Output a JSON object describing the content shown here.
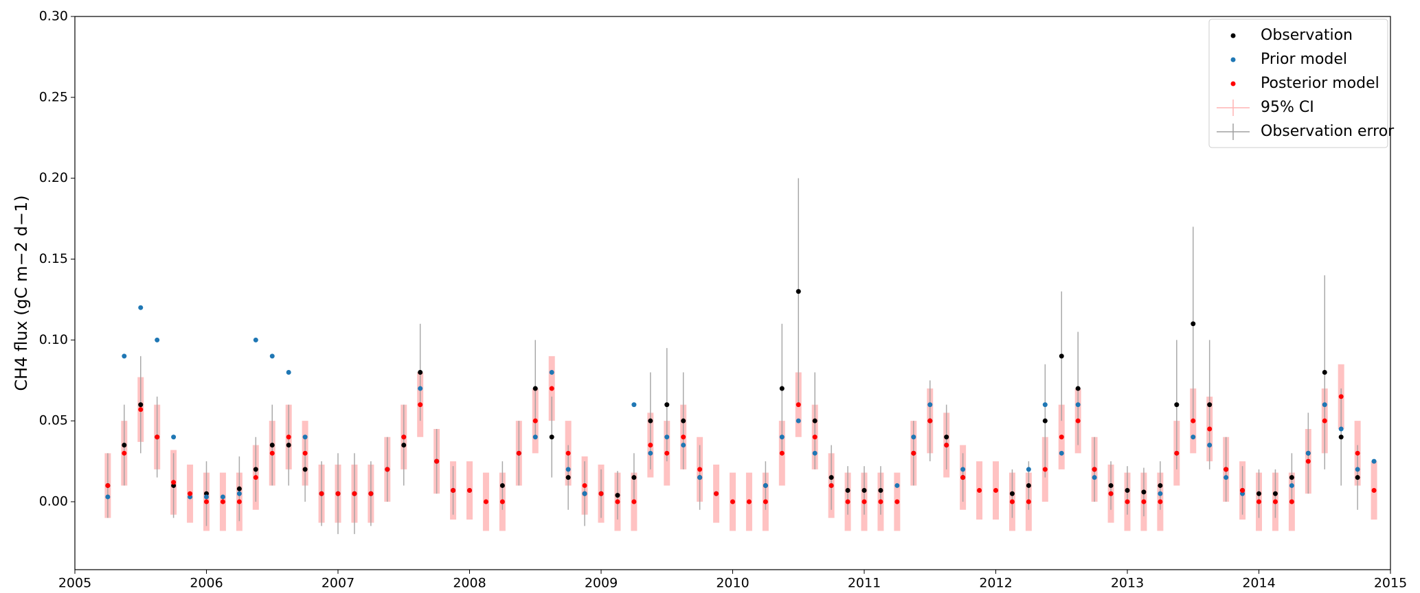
{
  "chart_data": {
    "type": "scatter",
    "y_label": "CH4 flux (gC m−2 d−1)",
    "xlim": [
      2005,
      2015
    ],
    "xticks": [
      2005,
      2006,
      2007,
      2008,
      2009,
      2010,
      2011,
      2012,
      2013,
      2014,
      2015
    ],
    "ylim": [
      -0.042,
      0.3
    ],
    "yticks": [
      {
        "value": 0,
        "label": "0.00"
      },
      {
        "value": 0.05,
        "label": "0.05"
      },
      {
        "value": 0.1,
        "label": "0.10"
      },
      {
        "value": 0.15,
        "label": "0.15"
      },
      {
        "value": 0.2,
        "label": "0.20"
      },
      {
        "value": 0.25,
        "label": "0.25"
      },
      {
        "value": 0.3,
        "label": "0.30"
      }
    ],
    "legend": "upper right",
    "x": [
      2005.25,
      2005.375,
      2005.5,
      2005.625,
      2005.75,
      2005.875,
      2006.0,
      2006.125,
      2006.25,
      2006.375,
      2006.5,
      2006.625,
      2006.75,
      2006.875,
      2007.0,
      2007.125,
      2007.25,
      2007.375,
      2007.5,
      2007.625,
      2007.75,
      2007.875,
      2008.0,
      2008.125,
      2008.25,
      2008.375,
      2008.5,
      2008.625,
      2008.75,
      2008.875,
      2009.0,
      2009.125,
      2009.25,
      2009.375,
      2009.5,
      2009.625,
      2009.75,
      2009.875,
      2010.0,
      2010.125,
      2010.25,
      2010.375,
      2010.5,
      2010.625,
      2010.75,
      2010.875,
      2011.0,
      2011.125,
      2011.25,
      2011.375,
      2011.5,
      2011.625,
      2011.75,
      2011.875,
      2012.0,
      2012.125,
      2012.25,
      2012.375,
      2012.5,
      2012.625,
      2012.75,
      2012.875,
      2013.0,
      2013.125,
      2013.25,
      2013.375,
      2013.5,
      2013.625,
      2013.75,
      2013.875,
      2014.0,
      2014.125,
      2014.25,
      2014.375,
      2014.5,
      2014.625,
      2014.75,
      2014.875
    ],
    "series": [
      {
        "name": "Observation",
        "color": "#000000",
        "error_name": "Observation error",
        "error_color": "#a0a0a0",
        "values": [
          0.01,
          0.035,
          0.06,
          0.04,
          0.01,
          null,
          0.005,
          null,
          0.008,
          0.02,
          0.035,
          0.035,
          0.02,
          0.005,
          0.005,
          0.005,
          0.005,
          0.02,
          0.035,
          0.08,
          0.025,
          0.007,
          null,
          null,
          0.01,
          0.03,
          0.07,
          0.04,
          0.015,
          0.005,
          0.005,
          0.004,
          0.015,
          0.05,
          0.06,
          0.05,
          0.015,
          null,
          null,
          null,
          0.01,
          0.07,
          0.13,
          0.05,
          0.015,
          0.007,
          0.007,
          0.007,
          null,
          0.03,
          0.05,
          0.04,
          0.015,
          null,
          null,
          0.005,
          0.01,
          0.05,
          0.09,
          0.07,
          0.02,
          0.01,
          0.007,
          0.006,
          0.01,
          0.06,
          0.11,
          0.06,
          0.02,
          0.007,
          0.005,
          0.005,
          0.015,
          0.03,
          0.08,
          0.04,
          0.015,
          null
        ],
        "errors": [
          0.02,
          0.025,
          0.03,
          0.025,
          0.02,
          null,
          0.02,
          null,
          0.02,
          0.02,
          0.025,
          0.025,
          0.02,
          0.02,
          0.025,
          0.025,
          0.02,
          0.02,
          0.025,
          0.03,
          0.02,
          0.015,
          null,
          null,
          0.015,
          0.02,
          0.03,
          0.025,
          0.02,
          0.02,
          0.015,
          0.015,
          0.015,
          0.03,
          0.035,
          0.03,
          0.02,
          null,
          null,
          null,
          0.015,
          0.04,
          0.07,
          0.03,
          0.02,
          0.015,
          0.015,
          0.015,
          null,
          0.02,
          0.025,
          0.02,
          0.015,
          null,
          null,
          0.015,
          0.015,
          0.035,
          0.04,
          0.035,
          0.02,
          0.015,
          0.015,
          0.015,
          0.015,
          0.04,
          0.06,
          0.04,
          0.02,
          0.015,
          0.015,
          0.015,
          0.015,
          0.025,
          0.06,
          0.03,
          0.02,
          null
        ]
      },
      {
        "name": "Prior model",
        "color": "#1f77b4",
        "values": [
          0.003,
          0.09,
          0.12,
          0.1,
          0.04,
          0.003,
          0.003,
          0.003,
          0.005,
          0.1,
          0.09,
          0.08,
          0.04,
          0.005,
          null,
          null,
          0.005,
          0.02,
          0.04,
          0.07,
          0.025,
          0.007,
          0.007,
          null,
          null,
          0.03,
          0.04,
          0.08,
          0.02,
          0.005,
          0.005,
          null,
          0.06,
          0.03,
          0.04,
          0.035,
          0.015,
          0.005,
          null,
          null,
          0.01,
          0.04,
          0.05,
          0.03,
          0.01,
          null,
          null,
          null,
          0.01,
          0.04,
          0.06,
          0.035,
          0.02,
          null,
          null,
          null,
          0.02,
          0.06,
          0.03,
          0.06,
          0.015,
          0.005,
          null,
          null,
          0.005,
          0.03,
          0.04,
          0.035,
          0.015,
          0.005,
          null,
          null,
          0.01,
          0.03,
          0.06,
          0.045,
          0.02,
          0.025
        ]
      },
      {
        "name": "Posterior model",
        "color": "#ff0000",
        "error_name": "95% CI",
        "error_color": "#ffb3b3",
        "values": [
          0.01,
          0.03,
          0.057,
          0.04,
          0.012,
          0.005,
          0.0,
          0.0,
          0.0,
          0.015,
          0.03,
          0.04,
          0.03,
          0.005,
          0.005,
          0.005,
          0.005,
          0.02,
          0.04,
          0.06,
          0.025,
          0.007,
          0.007,
          0.0,
          0.0,
          0.03,
          0.05,
          0.07,
          0.03,
          0.01,
          0.005,
          0.0,
          0.0,
          0.035,
          0.03,
          0.04,
          0.02,
          0.005,
          0.0,
          0.0,
          0.0,
          0.03,
          0.06,
          0.04,
          0.01,
          0.0,
          0.0,
          0.0,
          0.0,
          0.03,
          0.05,
          0.035,
          0.015,
          0.007,
          0.007,
          0.0,
          0.0,
          0.02,
          0.04,
          0.05,
          0.02,
          0.005,
          0.0,
          0.0,
          0.0,
          0.03,
          0.05,
          0.045,
          0.02,
          0.007,
          0.0,
          0.0,
          0.0,
          0.025,
          0.05,
          0.065,
          0.03,
          0.007
        ],
        "errors": [
          0.02,
          0.02,
          0.02,
          0.02,
          0.02,
          0.018,
          0.018,
          0.018,
          0.018,
          0.02,
          0.02,
          0.02,
          0.02,
          0.018,
          0.018,
          0.018,
          0.018,
          0.02,
          0.02,
          0.02,
          0.02,
          0.018,
          0.018,
          0.018,
          0.018,
          0.02,
          0.02,
          0.02,
          0.02,
          0.018,
          0.018,
          0.018,
          0.018,
          0.02,
          0.02,
          0.02,
          0.02,
          0.018,
          0.018,
          0.018,
          0.018,
          0.02,
          0.02,
          0.02,
          0.02,
          0.018,
          0.018,
          0.018,
          0.018,
          0.02,
          0.02,
          0.02,
          0.02,
          0.018,
          0.018,
          0.018,
          0.018,
          0.02,
          0.02,
          0.02,
          0.02,
          0.018,
          0.018,
          0.018,
          0.018,
          0.02,
          0.02,
          0.02,
          0.02,
          0.018,
          0.018,
          0.018,
          0.018,
          0.02,
          0.02,
          0.02,
          0.02,
          0.018
        ]
      }
    ]
  }
}
